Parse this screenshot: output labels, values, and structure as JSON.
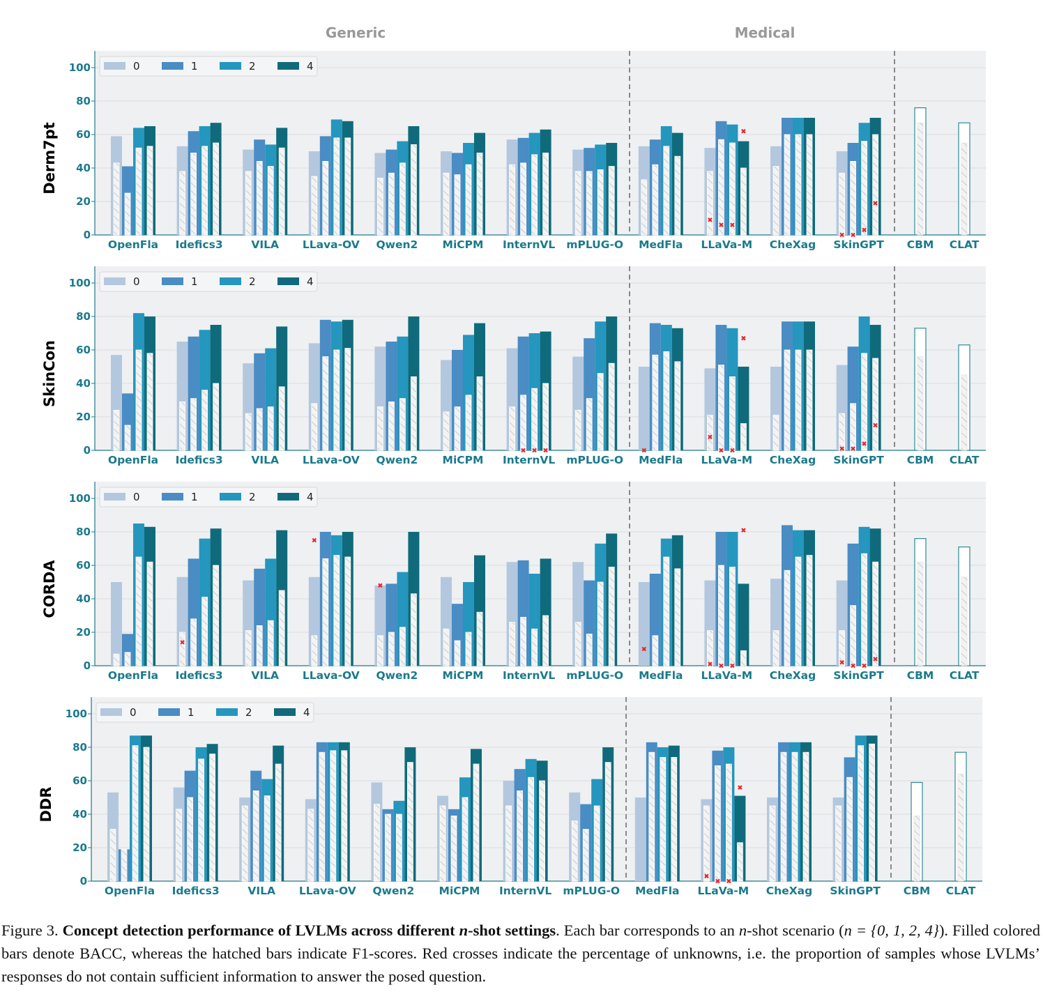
{
  "section_labels": {
    "generic": "Generic",
    "medical": "Medical"
  },
  "legend": [
    "0",
    "1",
    "2",
    "4"
  ],
  "colors": {
    "0": "#b3c8de",
    "1": "#4a8cc4",
    "2": "#2596be",
    "4": "#0f6b7b",
    "tick": "#1a7a8c",
    "background": "#eff0f2",
    "unknown": "#e8262b",
    "baseline_edge": "#2b8a96"
  },
  "chart_data": [
    {
      "type": "bar",
      "ylabel": "Derm7pt",
      "ylim": [
        0,
        110
      ],
      "yticks": [
        0,
        20,
        40,
        60,
        80,
        100
      ],
      "categories": [
        "OpenFla",
        "Idefics3",
        "VILA",
        "LLava-OV",
        "Qwen2",
        "MiCPM",
        "InternVL",
        "mPLUG-O",
        "MedFla",
        "LLaVa-M",
        "CheXag",
        "SkinGPT"
      ],
      "series": [
        {
          "name": "0",
          "bacc": [
            59,
            53,
            51,
            50,
            49,
            50,
            57,
            51,
            53,
            52,
            53,
            50
          ],
          "f1": [
            43,
            38,
            38,
            35,
            34,
            37,
            42,
            38,
            33,
            38,
            41,
            37
          ]
        },
        {
          "name": "1",
          "bacc": [
            41,
            62,
            57,
            59,
            51,
            49,
            58,
            52,
            57,
            68,
            70,
            55
          ],
          "f1": [
            25,
            49,
            44,
            44,
            37,
            36,
            43,
            38,
            42,
            57,
            60,
            44
          ]
        },
        {
          "name": "2",
          "bacc": [
            64,
            65,
            54,
            69,
            56,
            55,
            61,
            54,
            65,
            66,
            70,
            67
          ],
          "f1": [
            52,
            53,
            41,
            58,
            43,
            42,
            48,
            39,
            53,
            55,
            60,
            56
          ]
        },
        {
          "name": "4",
          "bacc": [
            65,
            67,
            64,
            68,
            65,
            61,
            63,
            55,
            61,
            56,
            70,
            70
          ],
          "f1": [
            53,
            55,
            52,
            58,
            54,
            49,
            49,
            41,
            47,
            40,
            60,
            60
          ]
        }
      ],
      "unknowns": {
        "LLaVa-M": [
          9,
          6,
          6,
          62
        ],
        "SkinGPT": [
          0,
          0,
          3,
          19
        ]
      },
      "baselines": [
        {
          "name": "CBM",
          "bacc": 76,
          "f1": 67
        },
        {
          "name": "CLAT",
          "bacc": 67,
          "f1": 55
        }
      ]
    },
    {
      "type": "bar",
      "ylabel": "SkinCon",
      "ylim": [
        0,
        110
      ],
      "yticks": [
        0,
        20,
        40,
        60,
        80,
        100
      ],
      "categories": [
        "OpenFla",
        "Idefics3",
        "VILA",
        "LLava-OV",
        "Qwen2",
        "MiCPM",
        "InternVL",
        "mPLUG-O",
        "MedFla",
        "LLaVa-M",
        "CheXag",
        "SkinGPT"
      ],
      "series": [
        {
          "name": "0",
          "bacc": [
            57,
            65,
            52,
            64,
            62,
            54,
            61,
            56,
            50,
            49,
            50,
            51
          ],
          "f1": [
            24,
            29,
            22,
            28,
            26,
            23,
            26,
            24,
            0,
            21,
            21,
            22
          ]
        },
        {
          "name": "1",
          "bacc": [
            34,
            68,
            58,
            78,
            65,
            60,
            68,
            67,
            76,
            75,
            77,
            62
          ],
          "f1": [
            15,
            31,
            25,
            56,
            29,
            26,
            33,
            31,
            57,
            51,
            60,
            28
          ]
        },
        {
          "name": "2",
          "bacc": [
            82,
            72,
            61,
            77,
            68,
            69,
            70,
            77,
            75,
            73,
            77,
            80
          ],
          "f1": [
            60,
            36,
            26,
            60,
            31,
            33,
            37,
            46,
            59,
            44,
            60,
            58
          ]
        },
        {
          "name": "4",
          "bacc": [
            80,
            75,
            74,
            78,
            80,
            76,
            71,
            80,
            73,
            50,
            77,
            75
          ],
          "f1": [
            58,
            40,
            38,
            61,
            44,
            44,
            40,
            52,
            53,
            16,
            60,
            55
          ]
        }
      ],
      "unknowns": {
        "InternVL": [
          null,
          0,
          0,
          0
        ],
        "MedFla": [
          0,
          null,
          null,
          null
        ],
        "LLaVa-M": [
          8,
          0,
          0,
          67
        ],
        "SkinGPT": [
          1,
          1,
          4,
          15
        ]
      },
      "baselines": [
        {
          "name": "CBM",
          "bacc": 73,
          "f1": 56
        },
        {
          "name": "CLAT",
          "bacc": 63,
          "f1": 45
        }
      ]
    },
    {
      "type": "bar",
      "ylabel": "CORDA",
      "ylim": [
        0,
        110
      ],
      "yticks": [
        0,
        20,
        40,
        60,
        80,
        100
      ],
      "categories": [
        "OpenFla",
        "Idefics3",
        "VILA",
        "LLava-OV",
        "Qwen2",
        "MiCPM",
        "InternVL",
        "mPLUG-O",
        "MedFla",
        "LLaVa-M",
        "CheXag",
        "SkinGPT"
      ],
      "series": [
        {
          "name": "0",
          "bacc": [
            50,
            53,
            51,
            53,
            48,
            53,
            62,
            62,
            50,
            51,
            52,
            51
          ],
          "f1": [
            7,
            20,
            21,
            18,
            18,
            22,
            26,
            26,
            0,
            21,
            21,
            21
          ]
        },
        {
          "name": "1",
          "bacc": [
            19,
            64,
            58,
            80,
            49,
            37,
            63,
            51,
            55,
            80,
            84,
            73
          ],
          "f1": [
            8,
            28,
            24,
            64,
            20,
            15,
            29,
            19,
            18,
            60,
            57,
            36
          ]
        },
        {
          "name": "2",
          "bacc": [
            85,
            76,
            64,
            78,
            56,
            50,
            55,
            73,
            76,
            80,
            81,
            83
          ],
          "f1": [
            65,
            41,
            27,
            66,
            23,
            20,
            22,
            50,
            65,
            59,
            65,
            67
          ]
        },
        {
          "name": "4",
          "bacc": [
            83,
            82,
            81,
            80,
            80,
            66,
            64,
            79,
            78,
            49,
            81,
            82
          ],
          "f1": [
            62,
            60,
            45,
            65,
            43,
            32,
            30,
            59,
            58,
            9,
            66,
            62
          ]
        }
      ],
      "unknowns": {
        "Idefics3": [
          14,
          null,
          null,
          null
        ],
        "LLava-OV": [
          75,
          null,
          null,
          null
        ],
        "Qwen2": [
          48,
          null,
          null,
          null
        ],
        "MedFla": [
          10,
          null,
          null,
          null
        ],
        "LLaVa-M": [
          1,
          0,
          0,
          81
        ],
        "SkinGPT": [
          2,
          0,
          0,
          4
        ]
      },
      "baselines": [
        {
          "name": "CBM",
          "bacc": 76,
          "f1": 62
        },
        {
          "name": "CLAT",
          "bacc": 71,
          "f1": 53
        }
      ]
    },
    {
      "type": "bar",
      "ylabel": "DDR",
      "ylim": [
        0,
        110
      ],
      "yticks": [
        0,
        20,
        40,
        60,
        80,
        100
      ],
      "categories": [
        "OpenFla",
        "Idefics3",
        "VILA",
        "LLava-OV",
        "Qwen2",
        "MiCPM",
        "InternVL",
        "mPLUG-O",
        "MedFla",
        "LLaVa-M",
        "CheXag",
        "SkinGPT"
      ],
      "series": [
        {
          "name": "0",
          "bacc": [
            53,
            56,
            50,
            49,
            59,
            51,
            60,
            53,
            50,
            49,
            50,
            50
          ],
          "f1": [
            31,
            43,
            45,
            43,
            46,
            45,
            45,
            36,
            0,
            45,
            45,
            45
          ]
        },
        {
          "name": "1",
          "bacc": [
            19,
            66,
            66,
            83,
            43,
            43,
            67,
            46,
            83,
            78,
            83,
            74
          ],
          "f1": [
            19,
            50,
            54,
            77,
            40,
            39,
            54,
            31,
            77,
            69,
            77,
            62
          ]
        },
        {
          "name": "2",
          "bacc": [
            87,
            80,
            61,
            83,
            48,
            62,
            73,
            61,
            80,
            80,
            83,
            87
          ],
          "f1": [
            81,
            73,
            51,
            78,
            40,
            50,
            62,
            45,
            74,
            70,
            77,
            81
          ]
        },
        {
          "name": "4",
          "bacc": [
            87,
            82,
            81,
            83,
            80,
            79,
            72,
            80,
            81,
            51,
            83,
            87
          ],
          "f1": [
            80,
            76,
            70,
            78,
            71,
            70,
            60,
            71,
            74,
            23,
            77,
            82
          ]
        }
      ],
      "unknowns": {
        "LLaVa-M": [
          3,
          0,
          0,
          56
        ]
      },
      "baselines": [
        {
          "name": "CBM",
          "bacc": 59,
          "f1": 39
        },
        {
          "name": "CLAT",
          "bacc": 77,
          "f1": 64
        }
      ]
    }
  ],
  "caption": {
    "figure_label": "Figure 3.",
    "title_a": "Concept detection performance of LVLMs across different",
    "title_n": "n",
    "title_b": "-shot settings",
    "text_a": ". Each bar corresponds to an",
    "text_n": "n",
    "text_b": "-shot scenario (",
    "text_set": "n = {0, 1, 2, 4}",
    "text_c": "). Filled colored bars denote BACC, whereas the hatched bars indicate F1-scores. Red crosses indicate the percentage of unknowns, i.e. the proportion of samples whose LVLMs’ responses do not contain sufficient information to answer the posed question."
  }
}
